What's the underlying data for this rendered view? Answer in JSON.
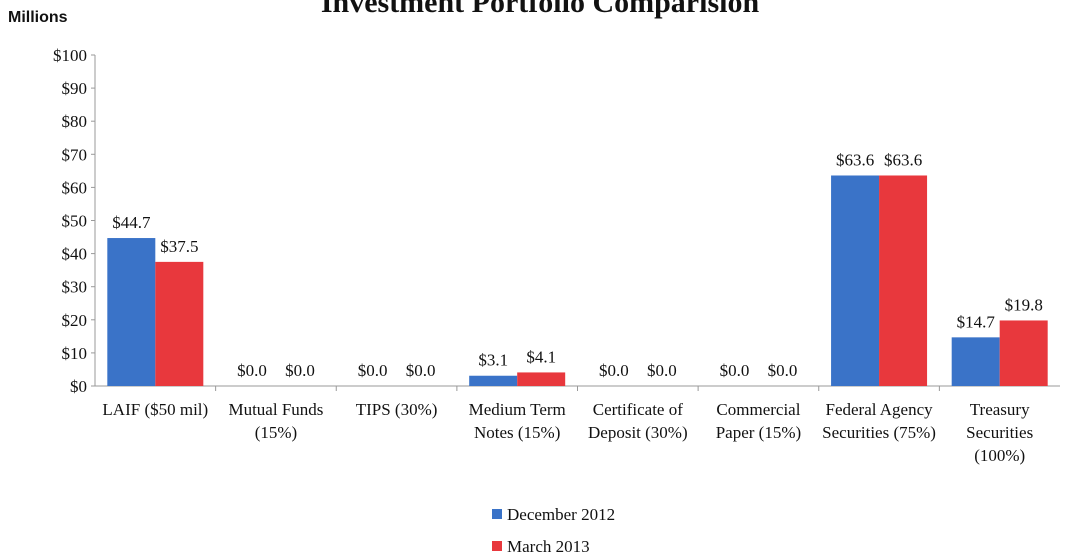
{
  "chart_data": {
    "type": "bar",
    "title": "Investment Portfolio Comparision",
    "y_axis_label": "Millions",
    "categories": [
      "LAIF ($50 mil)",
      "Mutual Funds (15%)",
      "TIPS (30%)",
      "Medium Term Notes (15%)",
      "Certificate of Deposit (30%)",
      "Commercial Paper (15%)",
      "Federal Agency Securities (75%)",
      "Treasury Securities (100%)"
    ],
    "series": [
      {
        "name": "December 2012",
        "color": "#3a73c8",
        "values": [
          44.7,
          0,
          0,
          3.1,
          0,
          0,
          63.6,
          14.7
        ],
        "value_labels": [
          "$44.7",
          "$0.0",
          "$0.0",
          "$3.1",
          "$0.0",
          "$0.0",
          "$63.6",
          "$14.7"
        ]
      },
      {
        "name": "March 2013",
        "color": "#e8383d",
        "values": [
          37.5,
          0,
          0,
          4.1,
          0,
          0,
          63.6,
          19.8
        ],
        "value_labels": [
          "$37.5",
          "$0.0",
          "$0.0",
          "$4.1",
          "$0.0",
          "$0.0",
          "$63.6",
          "$19.8"
        ]
      }
    ],
    "ylim": [
      0,
      100
    ],
    "yticks": [
      {
        "value": 0,
        "label": "$0"
      },
      {
        "value": 10,
        "label": "$10"
      },
      {
        "value": 20,
        "label": "$20"
      },
      {
        "value": 30,
        "label": "$30"
      },
      {
        "value": 40,
        "label": "$40"
      },
      {
        "value": 50,
        "label": "$50"
      },
      {
        "value": 60,
        "label": "$60"
      },
      {
        "value": 70,
        "label": "$70"
      },
      {
        "value": 80,
        "label": "$80"
      },
      {
        "value": 90,
        "label": "$90"
      },
      {
        "value": 100,
        "label": "$100"
      }
    ],
    "grid": false,
    "legend": "bottom"
  }
}
